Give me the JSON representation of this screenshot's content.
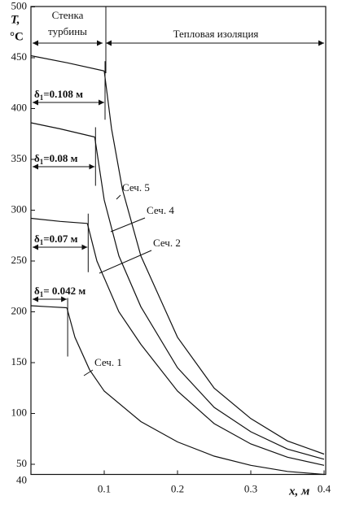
{
  "chart_data": {
    "type": "line",
    "y_label": [
      "T,",
      "°C"
    ],
    "x_label": "x, м",
    "header": {
      "left": [
        "Стенка",
        "турбины"
      ],
      "right": "Тепловая изоляция"
    },
    "xlim": [
      0,
      0.4
    ],
    "xticks": [
      0.1,
      0.2,
      0.3,
      0.4
    ],
    "ylim": [
      40,
      500
    ],
    "yticks": [
      40,
      50,
      100,
      150,
      200,
      250,
      300,
      350,
      400,
      450,
      500
    ],
    "color": "#111111",
    "series": [
      {
        "name": "Сеч. 5",
        "delta": {
          "symbol": "δ",
          "index": "1",
          "value": "=0.108 м"
        },
        "segments": [
          {
            "x": [
              0,
              0.05,
              0.1
            ],
            "values": [
              452,
              445,
              437
            ]
          },
          {
            "x": [
              0.1,
              0.11,
              0.125,
              0.15,
              0.2,
              0.25,
              0.3,
              0.35,
              0.4
            ],
            "values": [
              437,
              380,
              320,
              255,
              175,
              125,
              95,
              73,
              60
            ]
          }
        ]
      },
      {
        "name": "Сеч. 4",
        "delta": {
          "symbol": "δ",
          "index": "1",
          "value": "=0.08 м"
        },
        "segments": [
          {
            "x": [
              0,
              0.04,
              0.087
            ],
            "values": [
              386,
              380,
              372
            ]
          },
          {
            "x": [
              0.087,
              0.1,
              0.12,
              0.15,
              0.2,
              0.25,
              0.3,
              0.35,
              0.4
            ],
            "values": [
              372,
              310,
              255,
              205,
              145,
              106,
              82,
              65,
              55
            ]
          }
        ]
      },
      {
        "name": "Сеч. 2",
        "delta": {
          "symbol": "δ",
          "index": "1",
          "value": "=0.07 м"
        },
        "segments": [
          {
            "x": [
              0,
              0.04,
              0.077
            ],
            "values": [
              292,
              289,
              287
            ]
          },
          {
            "x": [
              0.077,
              0.09,
              0.12,
              0.15,
              0.2,
              0.25,
              0.3,
              0.35,
              0.4
            ],
            "values": [
              287,
              250,
              200,
              168,
              122,
              90,
              70,
              57,
              49
            ]
          }
        ]
      },
      {
        "name": "Сеч. 1",
        "delta": {
          "symbol": "δ",
          "index": "1",
          "value": "= 0.042 м"
        },
        "segments": [
          {
            "x": [
              0,
              0.025,
              0.049
            ],
            "values": [
              206,
              205,
              204
            ]
          },
          {
            "x": [
              0.049,
              0.06,
              0.08,
              0.1,
              0.15,
              0.2,
              0.25,
              0.3,
              0.35,
              0.4
            ],
            "values": [
              204,
              175,
              143,
              122,
              92,
              72,
              58,
              49,
              43,
              40
            ]
          }
        ]
      }
    ]
  }
}
